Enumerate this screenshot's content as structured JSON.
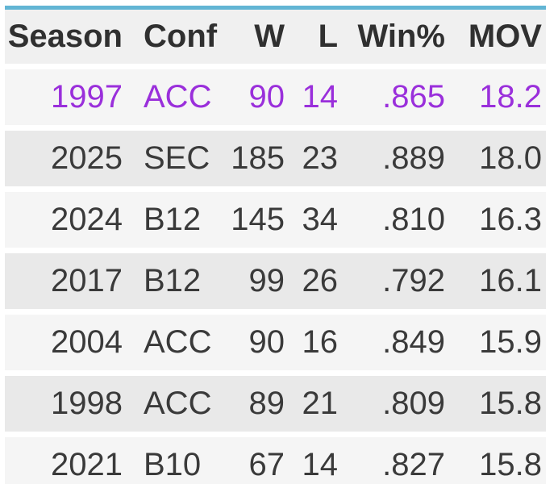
{
  "chart_data": {
    "type": "table",
    "title": "",
    "columns": [
      "Season",
      "Conf",
      "W",
      "L",
      "Win%",
      "MOV"
    ],
    "rows": [
      {
        "season": "1997",
        "conf": "ACC",
        "w": "90",
        "l": "14",
        "win_pct": ".865",
        "mov": "18.2",
        "highlighted": true
      },
      {
        "season": "2025",
        "conf": "SEC",
        "w": "185",
        "l": "23",
        "win_pct": ".889",
        "mov": "18.0",
        "highlighted": false
      },
      {
        "season": "2024",
        "conf": "B12",
        "w": "145",
        "l": "34",
        "win_pct": ".810",
        "mov": "16.3",
        "highlighted": false
      },
      {
        "season": "2017",
        "conf": "B12",
        "w": "99",
        "l": "26",
        "win_pct": ".792",
        "mov": "16.1",
        "highlighted": false
      },
      {
        "season": "2004",
        "conf": "ACC",
        "w": "90",
        "l": "16",
        "win_pct": ".849",
        "mov": "15.9",
        "highlighted": false
      },
      {
        "season": "1998",
        "conf": "ACC",
        "w": "89",
        "l": "21",
        "win_pct": ".809",
        "mov": "15.8",
        "highlighted": false
      },
      {
        "season": "2021",
        "conf": "B10",
        "w": "67",
        "l": "14",
        "win_pct": ".827",
        "mov": "15.8",
        "highlighted": false
      }
    ],
    "layout_hints": {
      "alternating_row_shading": true,
      "last_row_clipped_at_bottom": true,
      "numeric_columns_right_aligned": true,
      "conf_column_left_aligned": true
    }
  },
  "table": {
    "columns": [
      {
        "label": "Season"
      },
      {
        "label": "Conf"
      },
      {
        "label": "W"
      },
      {
        "label": "L"
      },
      {
        "label": "Win%"
      },
      {
        "label": "MOV"
      }
    ],
    "rows": [
      {
        "season": "1997",
        "conf": "ACC",
        "w": "90",
        "l": "14",
        "win_pct": ".865",
        "mov": "18.2"
      },
      {
        "season": "2025",
        "conf": "SEC",
        "w": "185",
        "l": "23",
        "win_pct": ".889",
        "mov": "18.0"
      },
      {
        "season": "2024",
        "conf": "B12",
        "w": "145",
        "l": "34",
        "win_pct": ".810",
        "mov": "16.3"
      },
      {
        "season": "2017",
        "conf": "B12",
        "w": "99",
        "l": "26",
        "win_pct": ".792",
        "mov": "16.1"
      },
      {
        "season": "2004",
        "conf": "ACC",
        "w": "90",
        "l": "16",
        "win_pct": ".849",
        "mov": "15.9"
      },
      {
        "season": "1998",
        "conf": "ACC",
        "w": "89",
        "l": "21",
        "win_pct": ".809",
        "mov": "15.8"
      },
      {
        "season": "2021",
        "conf": "B10",
        "w": "67",
        "l": "14",
        "win_pct": ".827",
        "mov": "15.8"
      }
    ],
    "colors": {
      "accent_top_border": "#62b5d4",
      "header_bg": "#f0f0f0",
      "row_light_bg": "#f5f5f5",
      "row_dark_bg": "#e9e9e9",
      "text": "#3a3a3a",
      "highlight_text": "#9a2fdb"
    }
  }
}
